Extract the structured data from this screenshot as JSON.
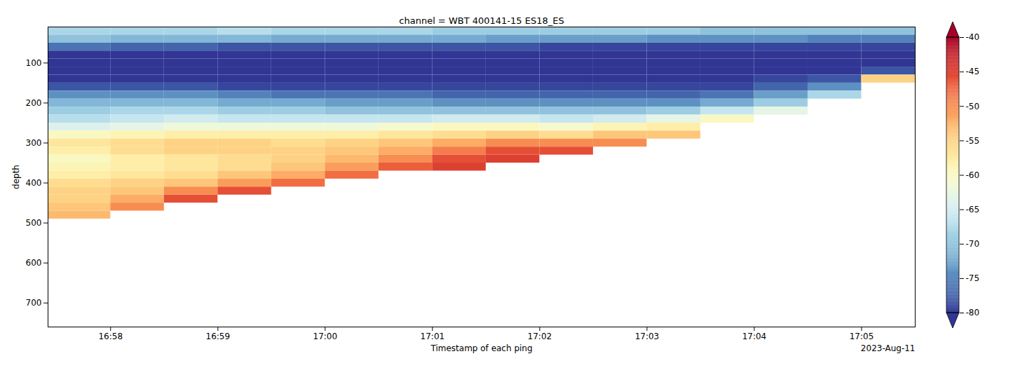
{
  "chart_data": {
    "type": "heatmap",
    "title": "channel = WBT 400141-15 ES18_ES",
    "x_label": "Timestamp of each ping",
    "y_label": "depth",
    "annotation": "2023-Aug-11",
    "color": "RdYlBu_r",
    "x": [
      "2023-08-11T16:57:25Z",
      "2023-08-11T16:58:00Z",
      "2023-08-11T16:58:30Z",
      "2023-08-11T16:59:00Z",
      "2023-08-11T16:59:30Z",
      "2023-08-11T17:00:00Z",
      "2023-08-11T17:00:30Z",
      "2023-08-11T17:01:00Z",
      "2023-08-11T17:01:30Z",
      "2023-08-11T17:02:00Z",
      "2023-08-11T17:02:30Z",
      "2023-08-11T17:03:00Z",
      "2023-08-11T17:03:30Z",
      "2023-08-11T17:04:00Z",
      "2023-08-11T17:04:30Z",
      "2023-08-11T17:05:00Z",
      "2023-08-11T17:05:30Z"
    ],
    "y": [
      10,
      30,
      50,
      70,
      90,
      110,
      130,
      150,
      170,
      190,
      210,
      230,
      250,
      270,
      290,
      310,
      330,
      350,
      370,
      390,
      410,
      430,
      450,
      470,
      490,
      510
    ],
    "values": [
      [
        -68,
        -70,
        -76,
        -80,
        -80,
        -80,
        -80,
        -78,
        -74,
        -71,
        -69,
        -67,
        -64,
        -60,
        -57,
        -58,
        -60,
        -59,
        -58,
        -56,
        -55,
        -55,
        -54,
        -53,
        null
      ],
      [
        -68,
        -71,
        -77,
        -80,
        -80,
        -80,
        -80,
        -78,
        -74,
        -71,
        -68,
        -66,
        -63,
        -59,
        -56,
        -56,
        -58,
        -58,
        -57,
        -55,
        -54,
        -52,
        -50,
        null,
        null
      ],
      [
        -68,
        -71,
        -77,
        -80,
        -80,
        -80,
        -80,
        -78,
        -74,
        -71,
        -68,
        -65,
        -62,
        -58,
        -55,
        -55,
        -57,
        -57,
        -56,
        -54,
        -50,
        -46,
        null,
        null,
        null
      ],
      [
        -67,
        -71,
        -78,
        -80,
        -80,
        -80,
        -80,
        -79,
        -75,
        -72,
        -69,
        -66,
        -62,
        -58,
        -55,
        -55,
        -56,
        -56,
        -54,
        -51,
        -46,
        null,
        null,
        null,
        null
      ],
      [
        -68,
        -72,
        -78,
        -80,
        -80,
        -80,
        -80,
        -79,
        -76,
        -72,
        -69,
        -66,
        -62,
        -58,
        -56,
        -55,
        -55,
        -54,
        -52,
        -48,
        null,
        null,
        null,
        null,
        null
      ],
      [
        -68,
        -72,
        -78,
        -80,
        -80,
        -80,
        -80,
        -79,
        -76,
        -73,
        -70,
        -66,
        -62,
        -58,
        -55,
        -54,
        -53,
        -51,
        -48,
        null,
        null,
        null,
        null,
        null,
        null
      ],
      [
        -68,
        -72,
        -78,
        -80,
        -80,
        -80,
        -80,
        -79,
        -76,
        -73,
        -70,
        -66,
        -61,
        -57,
        -54,
        -52,
        -50,
        -47,
        null,
        null,
        null,
        null,
        null,
        null,
        null
      ],
      [
        -69,
        -72,
        -78,
        -80,
        -80,
        -80,
        -80,
        -79,
        -77,
        -74,
        -70,
        -65,
        -60,
        -56,
        -52,
        -49,
        -46,
        -45,
        null,
        null,
        null,
        null,
        null,
        null,
        null
      ],
      [
        -69,
        -73,
        -78,
        -80,
        -80,
        -80,
        -80,
        -79,
        -77,
        -74,
        -70,
        -65,
        -60,
        -55,
        -50,
        -46,
        -45,
        null,
        null,
        null,
        null,
        null,
        null,
        null,
        null
      ],
      [
        -69,
        -73,
        -79,
        -80,
        -80,
        -80,
        -80,
        -79,
        -77,
        -74,
        -70,
        -66,
        -61,
        -56,
        -50,
        -46,
        null,
        null,
        null,
        null,
        null,
        null,
        null,
        null,
        null
      ],
      [
        -69,
        -73,
        -79,
        -80,
        -80,
        -80,
        -80,
        -79,
        -77,
        -74,
        -70,
        -65,
        -59,
        -54,
        -50,
        null,
        null,
        null,
        null,
        null,
        null,
        null,
        null,
        null,
        null
      ],
      [
        -69,
        -74,
        -79,
        -80,
        -80,
        -80,
        -80,
        -79,
        -77,
        -74,
        -69,
        -63,
        -58,
        -54,
        null,
        null,
        null,
        null,
        null,
        null,
        null,
        null,
        null,
        null,
        null
      ],
      [
        -70,
        -74,
        -79,
        -80,
        -80,
        -80,
        -80,
        -79,
        -76,
        -72,
        -66,
        -60,
        null,
        null,
        null,
        null,
        null,
        null,
        null,
        null,
        null,
        null,
        null,
        null,
        null
      ],
      [
        -70,
        -74,
        -79,
        -80,
        -80,
        -80,
        -79,
        -77,
        -73,
        -69,
        -63,
        null,
        null,
        null,
        null,
        null,
        null,
        null,
        null,
        null,
        null,
        null,
        null,
        null,
        null
      ],
      [
        -70,
        -75,
        -79,
        -80,
        -80,
        -80,
        -78,
        -74,
        -68,
        null,
        null,
        null,
        null,
        null,
        null,
        null,
        null,
        null,
        null,
        null,
        null,
        null,
        null,
        null,
        null
      ],
      [
        -70,
        -75,
        -79,
        -80,
        -80,
        -78,
        -55,
        null,
        null,
        null,
        null,
        null,
        null,
        null,
        null,
        null,
        null,
        null,
        null,
        null,
        null,
        null,
        null,
        null,
        null
      ]
    ],
    "xlim": [
      "2023-08-11T16:57:25Z",
      "2023-08-11T17:05:30Z"
    ],
    "xticks": [
      {
        "value": "2023-08-11T16:58:00Z",
        "label": "16:58"
      },
      {
        "value": "2023-08-11T16:59:00Z",
        "label": "16:59"
      },
      {
        "value": "2023-08-11T17:00:00Z",
        "label": "17:00"
      },
      {
        "value": "2023-08-11T17:01:00Z",
        "label": "17:01"
      },
      {
        "value": "2023-08-11T17:02:00Z",
        "label": "17:02"
      },
      {
        "value": "2023-08-11T17:03:00Z",
        "label": "17:03"
      },
      {
        "value": "2023-08-11T17:04:00Z",
        "label": "17:04"
      },
      {
        "value": "2023-08-11T17:05:00Z",
        "label": "17:05"
      }
    ],
    "ylim": [
      10,
      760
    ],
    "yticks": [
      100,
      200,
      300,
      400,
      500,
      600,
      700
    ],
    "colorbar": {
      "range": [
        -80,
        -40
      ],
      "ticks": [
        -80,
        -75,
        -70,
        -65,
        -60,
        -55,
        -50,
        -45,
        -40
      ]
    }
  }
}
